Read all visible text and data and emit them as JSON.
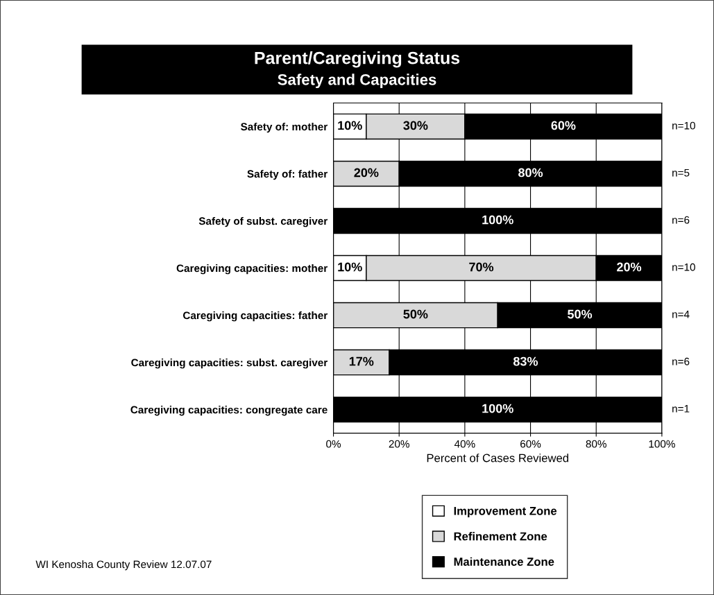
{
  "chart_data": {
    "type": "bar",
    "orientation": "horizontal",
    "stacked": true,
    "title": "Parent/Caregiving Status",
    "subtitle": "Safety and Capacities",
    "xlabel": "Percent of Cases Reviewed",
    "categories": [
      "Safety of: mother",
      "Safety of: father",
      "Safety of subst. caregiver",
      "Caregiving capacities: mother",
      "Caregiving capacities: father",
      "Caregiving capacities: subst. caregiver",
      "Caregiving capacities: congregate care"
    ],
    "series": [
      {
        "name": "Improvement Zone",
        "color": "#ffffff",
        "values": [
          10,
          null,
          null,
          10,
          null,
          null,
          null
        ],
        "value_labels": [
          "10%",
          null,
          null,
          "10%",
          null,
          null,
          null
        ]
      },
      {
        "name": "Refinement Zone",
        "color": "#d9d9d9",
        "values": [
          30,
          20,
          null,
          70,
          50,
          17,
          null
        ],
        "value_labels": [
          "30%",
          "20%",
          null,
          "70%",
          "50%",
          "17%",
          null
        ]
      },
      {
        "name": "Maintenance Zone",
        "color": "#000000",
        "values": [
          60,
          80,
          100,
          20,
          50,
          83,
          100
        ],
        "value_labels": [
          "60%",
          "80%",
          "100%",
          "20%",
          "50%",
          "83%",
          "100%"
        ]
      }
    ],
    "xlim": [
      0,
      100
    ],
    "xticks": [
      {
        "value": 0,
        "label": "0%"
      },
      {
        "value": 20,
        "label": "20%"
      },
      {
        "value": 40,
        "label": "40%"
      },
      {
        "value": 60,
        "label": "60%"
      },
      {
        "value": 80,
        "label": "80%"
      },
      {
        "value": 100,
        "label": "100%"
      }
    ],
    "grid": "x",
    "legend": "bottom",
    "annotations": [
      "n=10",
      "n=5",
      "n=6",
      "n=10",
      "n=4",
      "n=6",
      "n=1",
      "WI Kenosha County Review 12.07.07"
    ]
  }
}
